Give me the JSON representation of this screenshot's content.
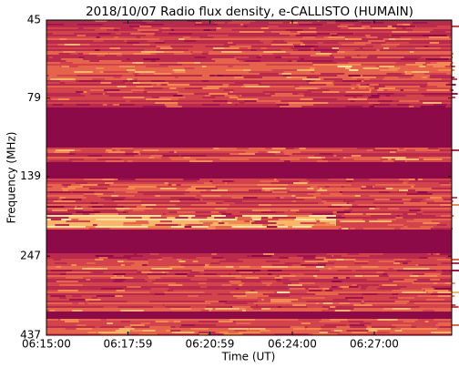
{
  "chart_data": {
    "type": "spectrogram",
    "title": "2018/10/07  Radio flux density, e-CALLISTO (HUMAIN)",
    "x_label": "Time (UT)",
    "y_label": "Frequency (MHz)",
    "xlim": [
      "06:15:00",
      "06:29:50"
    ],
    "xticks": [
      "06:15:00",
      "06:17:59",
      "06:20:59",
      "06:24:00",
      "06:27:00"
    ],
    "ylim": [
      45,
      437
    ],
    "y_inverted": true,
    "log_scale": true,
    "yticks": [
      45,
      79,
      139,
      247,
      437
    ]
  }
}
